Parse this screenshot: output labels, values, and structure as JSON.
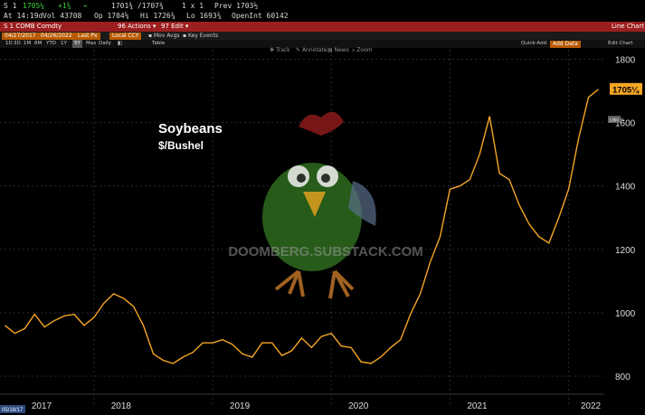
{
  "quote_bar": {
    "ticker": "S 1",
    "last": "1705¼",
    "change": "+1¾",
    "range": "1701¾ /1707¾",
    "size": "1 x 1",
    "prev": "Prev 1703½"
  },
  "stats_bar": {
    "at": "At 14:19d",
    "vol": "Vol 43708",
    "op": "Op 1704⅝",
    "hi": "Hi 1726¾",
    "lo": "Lo 1693¾",
    "openint": "OpenInt 60142"
  },
  "red_bar": {
    "security": "S 1 COMB Comdty",
    "actions": "96 Actions ▾",
    "edit": "97 Edit ▾",
    "title": "Line Chart"
  },
  "sec_bar": {
    "date_from": "04/27/2017",
    "date_to": "04/26/2022",
    "last_px": "Last Px",
    "currency": "Local CCY",
    "mov_avgs": "Mov Avgs",
    "key_events": "Key Events"
  },
  "range_bar": {
    "ranges": [
      "1D",
      "3D",
      "1M",
      "6M",
      "YTD",
      "1Y",
      "5Y",
      "Max"
    ],
    "daily": "Daily",
    "table": "Table",
    "quick_add": "Quick-Add",
    "add_data": "Add Data",
    "edit_chart": "Edit Chart"
  },
  "toolbar": {
    "track": "Track",
    "annotate": "Annotate",
    "news": "News",
    "zoom": "Zoom"
  },
  "watermark": "DOOMBERG.SUBSTACK.COM",
  "corner_label": "05/18/17",
  "right_label": "1360 ¼",
  "colors": {
    "line": "#f5a623",
    "last_box": "#f5a623",
    "header_red": "#9c1f1f",
    "grid": "#2a2a2a"
  },
  "chart_data": {
    "type": "line",
    "title": "Soybeans",
    "subtitle": "$/Bushel",
    "xlabel": "",
    "ylabel": "",
    "ylim": [
      760,
      1830
    ],
    "yticks": [
      800,
      1000,
      1200,
      1400,
      1600,
      1800
    ],
    "xticks": [
      "2017",
      "2018",
      "2019",
      "2020",
      "2021",
      "2022"
    ],
    "last_value": "1705¼",
    "grid": true,
    "series": [
      {
        "name": "",
        "x": [
          "2017-04",
          "2017-05",
          "2017-06",
          "2017-07",
          "2017-08",
          "2017-09",
          "2017-10",
          "2017-11",
          "2017-12",
          "2018-01",
          "2018-02",
          "2018-03",
          "2018-04",
          "2018-05",
          "2018-06",
          "2018-07",
          "2018-08",
          "2018-09",
          "2018-10",
          "2018-11",
          "2018-12",
          "2019-01",
          "2019-02",
          "2019-03",
          "2019-04",
          "2019-05",
          "2019-06",
          "2019-07",
          "2019-08",
          "2019-09",
          "2019-10",
          "2019-11",
          "2019-12",
          "2020-01",
          "2020-02",
          "2020-03",
          "2020-04",
          "2020-05",
          "2020-06",
          "2020-07",
          "2020-08",
          "2020-09",
          "2020-10",
          "2020-11",
          "2020-12",
          "2021-01",
          "2021-02",
          "2021-03",
          "2021-04",
          "2021-05",
          "2021-06",
          "2021-07",
          "2021-08",
          "2021-09",
          "2021-10",
          "2021-11",
          "2021-12",
          "2022-01",
          "2022-02",
          "2022-03",
          "2022-04"
        ],
        "values": [
          960,
          935,
          950,
          995,
          955,
          975,
          990,
          995,
          960,
          985,
          1030,
          1060,
          1045,
          1020,
          960,
          870,
          850,
          840,
          860,
          875,
          905,
          905,
          915,
          900,
          870,
          860,
          905,
          905,
          865,
          880,
          920,
          890,
          925,
          935,
          895,
          890,
          845,
          840,
          860,
          890,
          915,
          995,
          1060,
          1160,
          1240,
          1390,
          1400,
          1420,
          1500,
          1620,
          1440,
          1420,
          1340,
          1280,
          1240,
          1220,
          1300,
          1390,
          1550,
          1680,
          1705
        ]
      }
    ]
  }
}
